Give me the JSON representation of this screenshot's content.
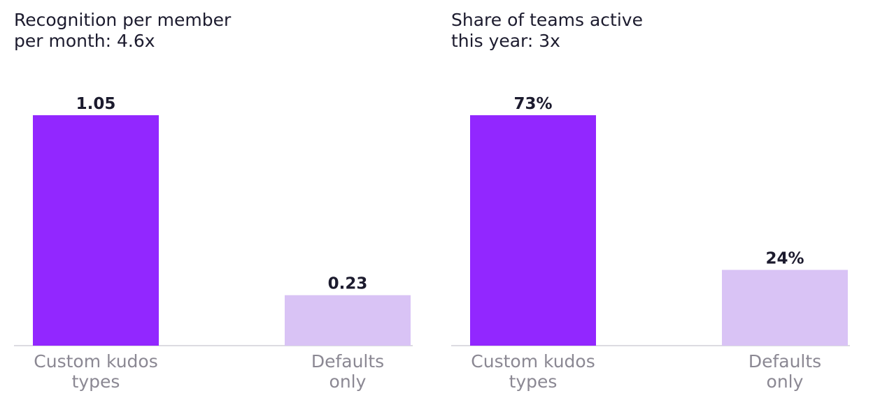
{
  "colors": {
    "primary_bar": "#9227ff",
    "secondary_bar": "#d9c3f5",
    "baseline": "#dcdbe1",
    "title_text": "#1c1b2e",
    "value_text": "#1c1b2e",
    "category_text": "#8b8893"
  },
  "chart_data": [
    {
      "type": "bar",
      "title": "Recognition per member\nper month: 4.6x",
      "categories": [
        [
          "Custom kudos",
          "types"
        ],
        [
          "Defaults",
          "only"
        ]
      ],
      "values": [
        1.05,
        0.23
      ],
      "value_labels": [
        "1.05",
        "0.23"
      ],
      "ylim": [
        0,
        1.05
      ],
      "grid": false,
      "legend": "none"
    },
    {
      "type": "bar",
      "title": "Share of teams active\nthis year: 3x",
      "categories": [
        [
          "Custom kudos",
          "types"
        ],
        [
          "Defaults",
          "only"
        ]
      ],
      "values": [
        73,
        24
      ],
      "value_labels": [
        "73%",
        "24%"
      ],
      "ylim": [
        0,
        73
      ],
      "grid": false,
      "legend": "none"
    }
  ]
}
